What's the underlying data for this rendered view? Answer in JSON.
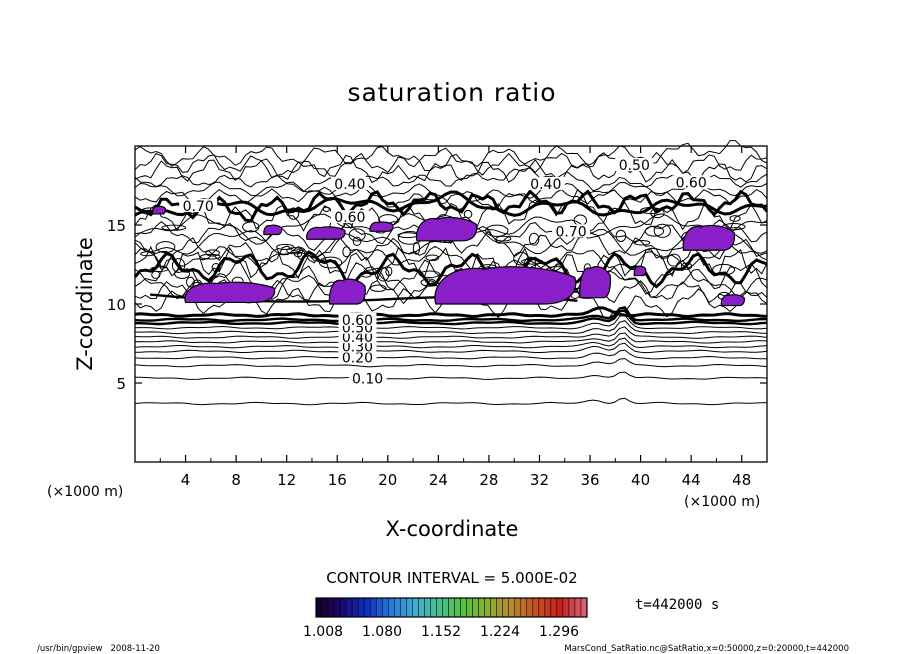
{
  "chart_data": {
    "type": "contour",
    "title": "saturation ratio",
    "xlabel": "X-coordinate",
    "ylabel": "Z-coordinate",
    "x_unit": "(×1000 m)",
    "y_unit": "(×1000 m)",
    "xlim": [
      0,
      50
    ],
    "ylim": [
      0,
      20
    ],
    "x_ticks": [
      4,
      8,
      12,
      16,
      20,
      24,
      28,
      32,
      36,
      40,
      44,
      48
    ],
    "y_ticks": [
      5,
      10,
      15
    ],
    "grid": false,
    "contour_interval_text": "CONTOUR INTERVAL = 5.000E-02",
    "contour_interval": 0.05,
    "time_label": "t=442000 s",
    "lower_contours": [
      {
        "level": 0.05,
        "z": 3.7,
        "label": ""
      },
      {
        "level": 0.1,
        "z": 5.3,
        "label": "0.10"
      },
      {
        "level": 0.15,
        "z": 6.1,
        "label": ""
      },
      {
        "level": 0.2,
        "z": 6.6,
        "label": "0.20"
      },
      {
        "level": 0.25,
        "z": 7.0,
        "label": ""
      },
      {
        "level": 0.3,
        "z": 7.3,
        "label": "0.30"
      },
      {
        "level": 0.35,
        "z": 7.6,
        "label": ""
      },
      {
        "level": 0.4,
        "z": 7.9,
        "label": "0.40"
      },
      {
        "level": 0.45,
        "z": 8.2,
        "label": ""
      },
      {
        "level": 0.5,
        "z": 8.5,
        "label": "0.50"
      },
      {
        "level": 0.55,
        "z": 8.8,
        "label": ""
      },
      {
        "level": 0.6,
        "z": 9.0,
        "label": "0.60"
      }
    ],
    "upper_labels": [
      {
        "text": "0.40",
        "x": 17.0,
        "z": 17.6
      },
      {
        "text": "0.40",
        "x": 32.5,
        "z": 17.6
      },
      {
        "text": "0.50",
        "x": 39.5,
        "z": 18.8
      },
      {
        "text": "0.60",
        "x": 44.0,
        "z": 17.7
      },
      {
        "text": "0.70",
        "x": 5.0,
        "z": 16.2
      },
      {
        "text": "0.60",
        "x": 17.0,
        "z": 15.5
      },
      {
        "text": "0.70",
        "x": 34.5,
        "z": 14.6
      }
    ],
    "supersaturated_regions": [
      {
        "x": [
          23.8,
          34.8
        ],
        "z": [
          10.0,
          12.4
        ]
      },
      {
        "x": [
          22.3,
          27.0
        ],
        "z": [
          14.0,
          15.5
        ]
      },
      {
        "x": [
          13.6,
          16.6
        ],
        "z": [
          14.1,
          14.9
        ]
      },
      {
        "x": [
          43.4,
          47.4
        ],
        "z": [
          13.4,
          15.0
        ]
      },
      {
        "x": [
          4.0,
          11.0
        ],
        "z": [
          10.1,
          11.4
        ]
      },
      {
        "x": [
          15.4,
          18.2
        ],
        "z": [
          10.0,
          11.6
        ]
      },
      {
        "x": [
          35.2,
          37.6
        ],
        "z": [
          10.4,
          12.4
        ]
      },
      {
        "x": [
          46.4,
          48.2
        ],
        "z": [
          9.9,
          10.6
        ]
      },
      {
        "x": [
          1.4,
          2.4
        ],
        "z": [
          15.7,
          16.2
        ]
      },
      {
        "x": [
          18.6,
          20.4
        ],
        "z": [
          14.6,
          15.2
        ]
      },
      {
        "x": [
          10.2,
          11.6
        ],
        "z": [
          14.4,
          15.0
        ]
      },
      {
        "x": [
          39.5,
          40.4
        ],
        "z": [
          11.8,
          12.4
        ]
      }
    ],
    "colorbar": {
      "tick_labels": [
        "1.008",
        "1.080",
        "1.152",
        "1.224",
        "1.296"
      ],
      "range": [
        1.008,
        1.332
      ],
      "colors": [
        "#14002a",
        "#1a0a7a",
        "#1030c0",
        "#2a7ad8",
        "#40b0d0",
        "#48c090",
        "#58c040",
        "#8ab030",
        "#b88830",
        "#c05020",
        "#c82020",
        "#d86070"
      ]
    },
    "region_color": "#8a1ec8"
  },
  "footer": {
    "left": "/usr/bin/gpview   2008-11-20",
    "right": "MarsCond_SatRatio.nc@SatRatio,x=0:50000,z=0:20000,t=442000"
  }
}
